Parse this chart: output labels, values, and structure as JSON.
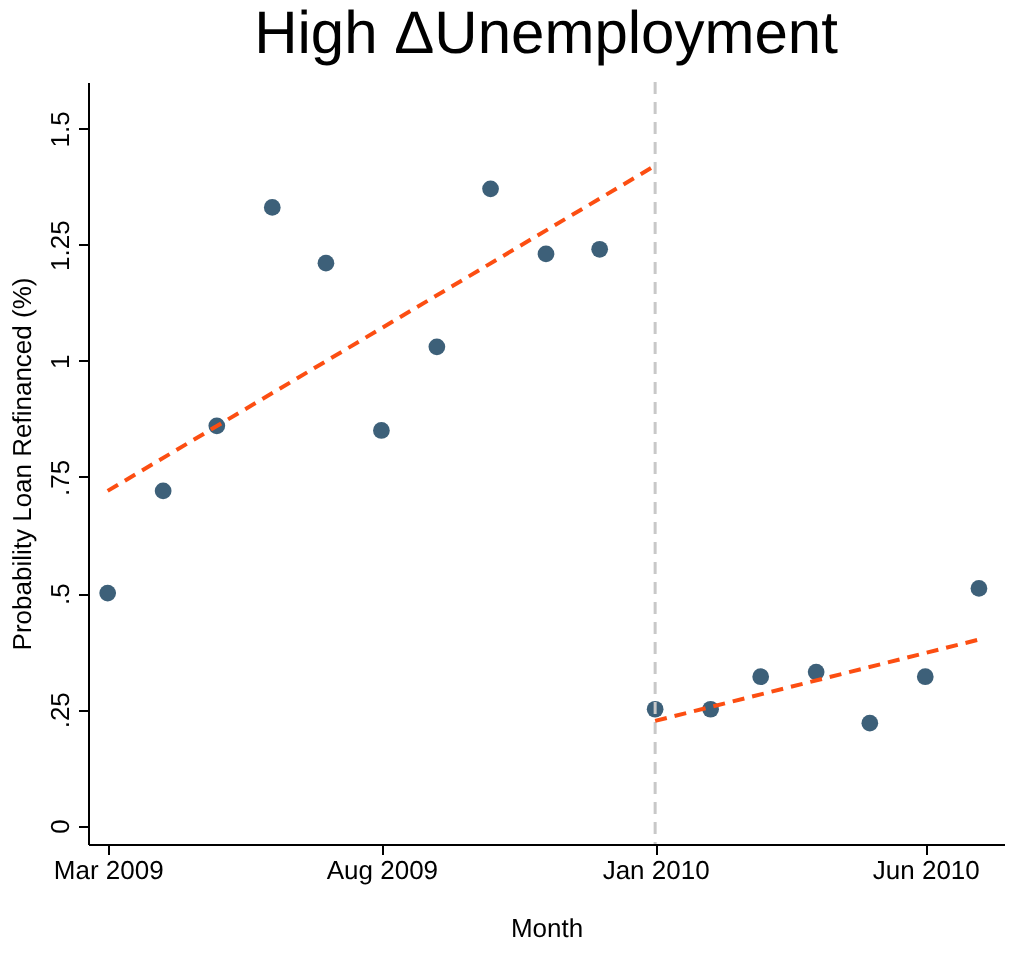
{
  "chart_data": {
    "type": "scatter",
    "title": "High ΔUnemployment",
    "xlabel": "Month",
    "ylabel": "Probability Loan Refinanced (%)",
    "x": [
      "2009-03",
      "2009-04",
      "2009-05",
      "2009-06",
      "2009-07",
      "2009-08",
      "2009-09",
      "2009-10",
      "2009-11",
      "2009-12",
      "2010-01",
      "2010-02",
      "2010-03",
      "2010-04",
      "2010-05",
      "2010-06",
      "2010-07"
    ],
    "series": [
      {
        "type": "scatter",
        "color": "#3d6079",
        "marker": "circle",
        "values": [
          0.5,
          0.72,
          0.86,
          1.33,
          1.21,
          0.85,
          1.03,
          1.37,
          1.23,
          1.24,
          0.25,
          0.25,
          0.32,
          0.33,
          0.22,
          0.32,
          0.51
        ]
      },
      {
        "type": "line",
        "color": "#fc4e12",
        "line_style": "dashed",
        "marker": "none",
        "x": [
          "2009-03",
          "2010-01"
        ],
        "values": [
          0.72,
          1.42
        ]
      },
      {
        "type": "line",
        "color": "#fc4e12",
        "line_style": "dashed",
        "marker": "none",
        "x": [
          "2010-01",
          "2010-07"
        ],
        "values": [
          0.225,
          0.4
        ]
      }
    ],
    "xlim": [
      "2009-02-18",
      "2010-07-15"
    ],
    "xticks": [
      {
        "value": "2009-03",
        "label": "Mar 2009"
      },
      {
        "value": "2009-08",
        "label": "Aug 2009"
      },
      {
        "value": "2010-01",
        "label": "Jan 2010"
      },
      {
        "value": "2010-06",
        "label": "Jun 2010"
      }
    ],
    "ylim": [
      -0.04,
      1.6
    ],
    "yticks": [
      {
        "value": 0,
        "label": "0"
      },
      {
        "value": 0.25,
        "label": ".25"
      },
      {
        "value": 0.5,
        "label": ".5"
      },
      {
        "value": 0.75,
        "label": ".75"
      },
      {
        "value": 1,
        "label": "1"
      },
      {
        "value": 1.25,
        "label": "1.25"
      },
      {
        "value": 1.5,
        "label": "1.5"
      }
    ],
    "ref_lines": [
      {
        "axis": "x",
        "value": "2010-01",
        "color": "#c8c8c8",
        "line_style": "dashed"
      }
    ],
    "grid": false
  }
}
